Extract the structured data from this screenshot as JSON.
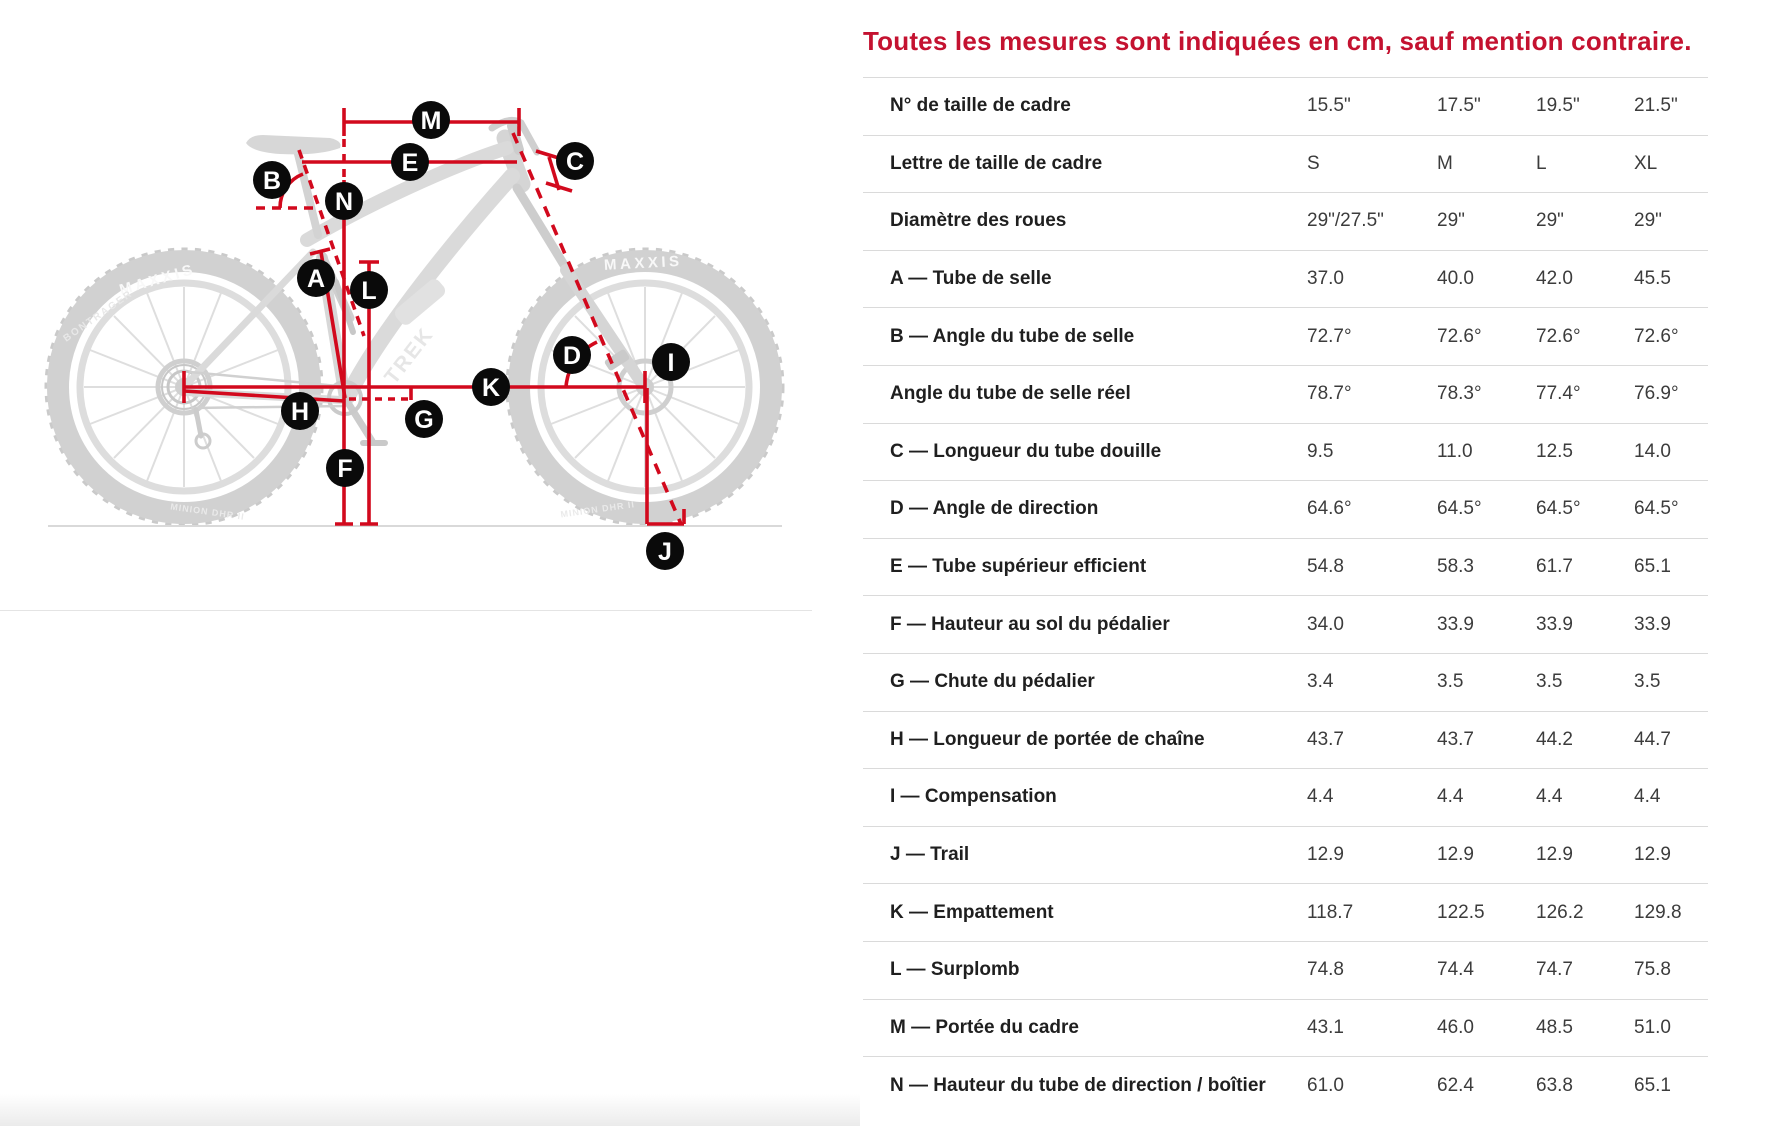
{
  "note": "Toutes les mesures sont indiquées en cm, sauf mention contraire.",
  "colors": {
    "note_red": "#c41230",
    "measure_line_red": "#d2091d",
    "marker_black": "#0a0a0a",
    "bike_gray": "#b5b5b5"
  },
  "table": {
    "rows": [
      {
        "label": "N° de taille de cadre",
        "values": [
          "15.5\"",
          "17.5\"",
          "19.5\"",
          "21.5\""
        ]
      },
      {
        "label": "Lettre de taille de cadre",
        "values": [
          "S",
          "M",
          "L",
          "XL"
        ]
      },
      {
        "label": "Diamètre des roues",
        "values": [
          "29\"/27.5\"",
          "29\"",
          "29\"",
          "29\""
        ]
      },
      {
        "label": "A — Tube de selle",
        "values": [
          "37.0",
          "40.0",
          "42.0",
          "45.5"
        ]
      },
      {
        "label": "B — Angle du tube de selle",
        "values": [
          "72.7°",
          "72.6°",
          "72.6°",
          "72.6°"
        ]
      },
      {
        "label": "Angle du tube de selle réel",
        "values": [
          "78.7°",
          "78.3°",
          "77.4°",
          "76.9°"
        ]
      },
      {
        "label": "C — Longueur du tube douille",
        "values": [
          "9.5",
          "11.0",
          "12.5",
          "14.0"
        ]
      },
      {
        "label": "D — Angle de direction",
        "values": [
          "64.6°",
          "64.5°",
          "64.5°",
          "64.5°"
        ]
      },
      {
        "label": "E — Tube supérieur efficient",
        "values": [
          "54.8",
          "58.3",
          "61.7",
          "65.1"
        ]
      },
      {
        "label": "F — Hauteur au sol du pédalier",
        "values": [
          "34.0",
          "33.9",
          "33.9",
          "33.9"
        ]
      },
      {
        "label": "G — Chute du pédalier",
        "values": [
          "3.4",
          "3.5",
          "3.5",
          "3.5"
        ]
      },
      {
        "label": "H — Longueur de portée de chaîne",
        "values": [
          "43.7",
          "43.7",
          "44.2",
          "44.7"
        ]
      },
      {
        "label": "I — Compensation",
        "values": [
          "4.4",
          "4.4",
          "4.4",
          "4.4"
        ]
      },
      {
        "label": "J — Trail",
        "values": [
          "12.9",
          "12.9",
          "12.9",
          "12.9"
        ]
      },
      {
        "label": "K — Empattement",
        "values": [
          "118.7",
          "122.5",
          "126.2",
          "129.8"
        ]
      },
      {
        "label": "L — Surplomb",
        "values": [
          "74.8",
          "74.4",
          "74.7",
          "75.8"
        ]
      },
      {
        "label": "M — Portée du cadre",
        "values": [
          "43.1",
          "46.0",
          "48.5",
          "51.0"
        ]
      },
      {
        "label": "N — Hauteur du tube de direction / boîtier",
        "values": [
          "61.0",
          "62.4",
          "63.8",
          "65.1"
        ]
      }
    ]
  },
  "diagram": {
    "markers": [
      {
        "letter": "M"
      },
      {
        "letter": "E"
      },
      {
        "letter": "C"
      },
      {
        "letter": "B"
      },
      {
        "letter": "N"
      },
      {
        "letter": "A"
      },
      {
        "letter": "L"
      },
      {
        "letter": "D"
      },
      {
        "letter": "I"
      },
      {
        "letter": "K"
      },
      {
        "letter": "H"
      },
      {
        "letter": "G"
      },
      {
        "letter": "F"
      },
      {
        "letter": "J"
      }
    ],
    "brands": {
      "tire": "MAXXIS",
      "frame": "TREK",
      "sidewall": "BONTRAGER",
      "tire_model": "MINION DHR II"
    }
  }
}
